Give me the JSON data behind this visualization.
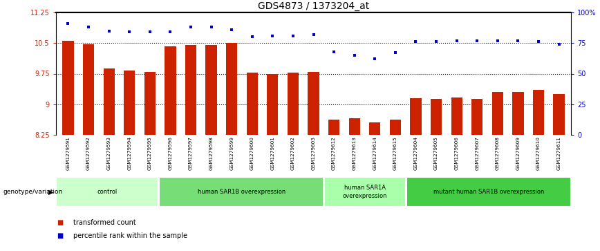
{
  "title": "GDS4873 / 1373204_at",
  "samples": [
    "GSM1279591",
    "GSM1279592",
    "GSM1279593",
    "GSM1279594",
    "GSM1279595",
    "GSM1279596",
    "GSM1279597",
    "GSM1279598",
    "GSM1279599",
    "GSM1279600",
    "GSM1279601",
    "GSM1279602",
    "GSM1279603",
    "GSM1279612",
    "GSM1279613",
    "GSM1279614",
    "GSM1279615",
    "GSM1279604",
    "GSM1279605",
    "GSM1279606",
    "GSM1279607",
    "GSM1279608",
    "GSM1279609",
    "GSM1279610",
    "GSM1279611"
  ],
  "bar_values": [
    10.55,
    10.47,
    9.88,
    9.83,
    9.8,
    10.42,
    10.45,
    10.45,
    10.5,
    9.77,
    9.75,
    9.77,
    9.79,
    8.62,
    8.66,
    8.56,
    8.63,
    9.15,
    9.13,
    9.17,
    9.13,
    9.3,
    9.3,
    9.35,
    9.25
  ],
  "percentile_values": [
    91,
    88,
    85,
    84,
    84,
    84,
    88,
    88,
    86,
    80,
    81,
    81,
    82,
    68,
    65,
    62,
    67,
    76,
    76,
    77,
    77,
    77,
    77,
    76,
    74
  ],
  "ylim_left": [
    8.25,
    11.25
  ],
  "ylim_right": [
    0,
    100
  ],
  "yticks_left": [
    8.25,
    9.0,
    9.75,
    10.5,
    11.25
  ],
  "yticks_right": [
    0,
    25,
    50,
    75,
    100
  ],
  "ytick_labels_left": [
    "8.25",
    "9",
    "9.75",
    "10.5",
    "11.25"
  ],
  "ytick_labels_right": [
    "0",
    "25",
    "50",
    "75",
    "100%"
  ],
  "bar_color": "#cc2200",
  "dot_color": "#0000cc",
  "bar_width": 0.55,
  "groups": [
    {
      "label": "control",
      "start": 0,
      "end": 5,
      "color": "#ccffcc"
    },
    {
      "label": "human SAR1B overexpression",
      "start": 5,
      "end": 13,
      "color": "#77dd77"
    },
    {
      "label": "human SAR1A\noverexpression",
      "start": 13,
      "end": 17,
      "color": "#aaffaa"
    },
    {
      "label": "mutant human SAR1B overexpression",
      "start": 17,
      "end": 25,
      "color": "#44cc44"
    }
  ],
  "legend_items": [
    {
      "label": "transformed count",
      "color": "#cc2200"
    },
    {
      "label": "percentile rank within the sample",
      "color": "#0000cc"
    }
  ],
  "genotype_label": "genotype/variation",
  "tick_area_color": "#c8c8c8",
  "bg_color": "#ffffff"
}
